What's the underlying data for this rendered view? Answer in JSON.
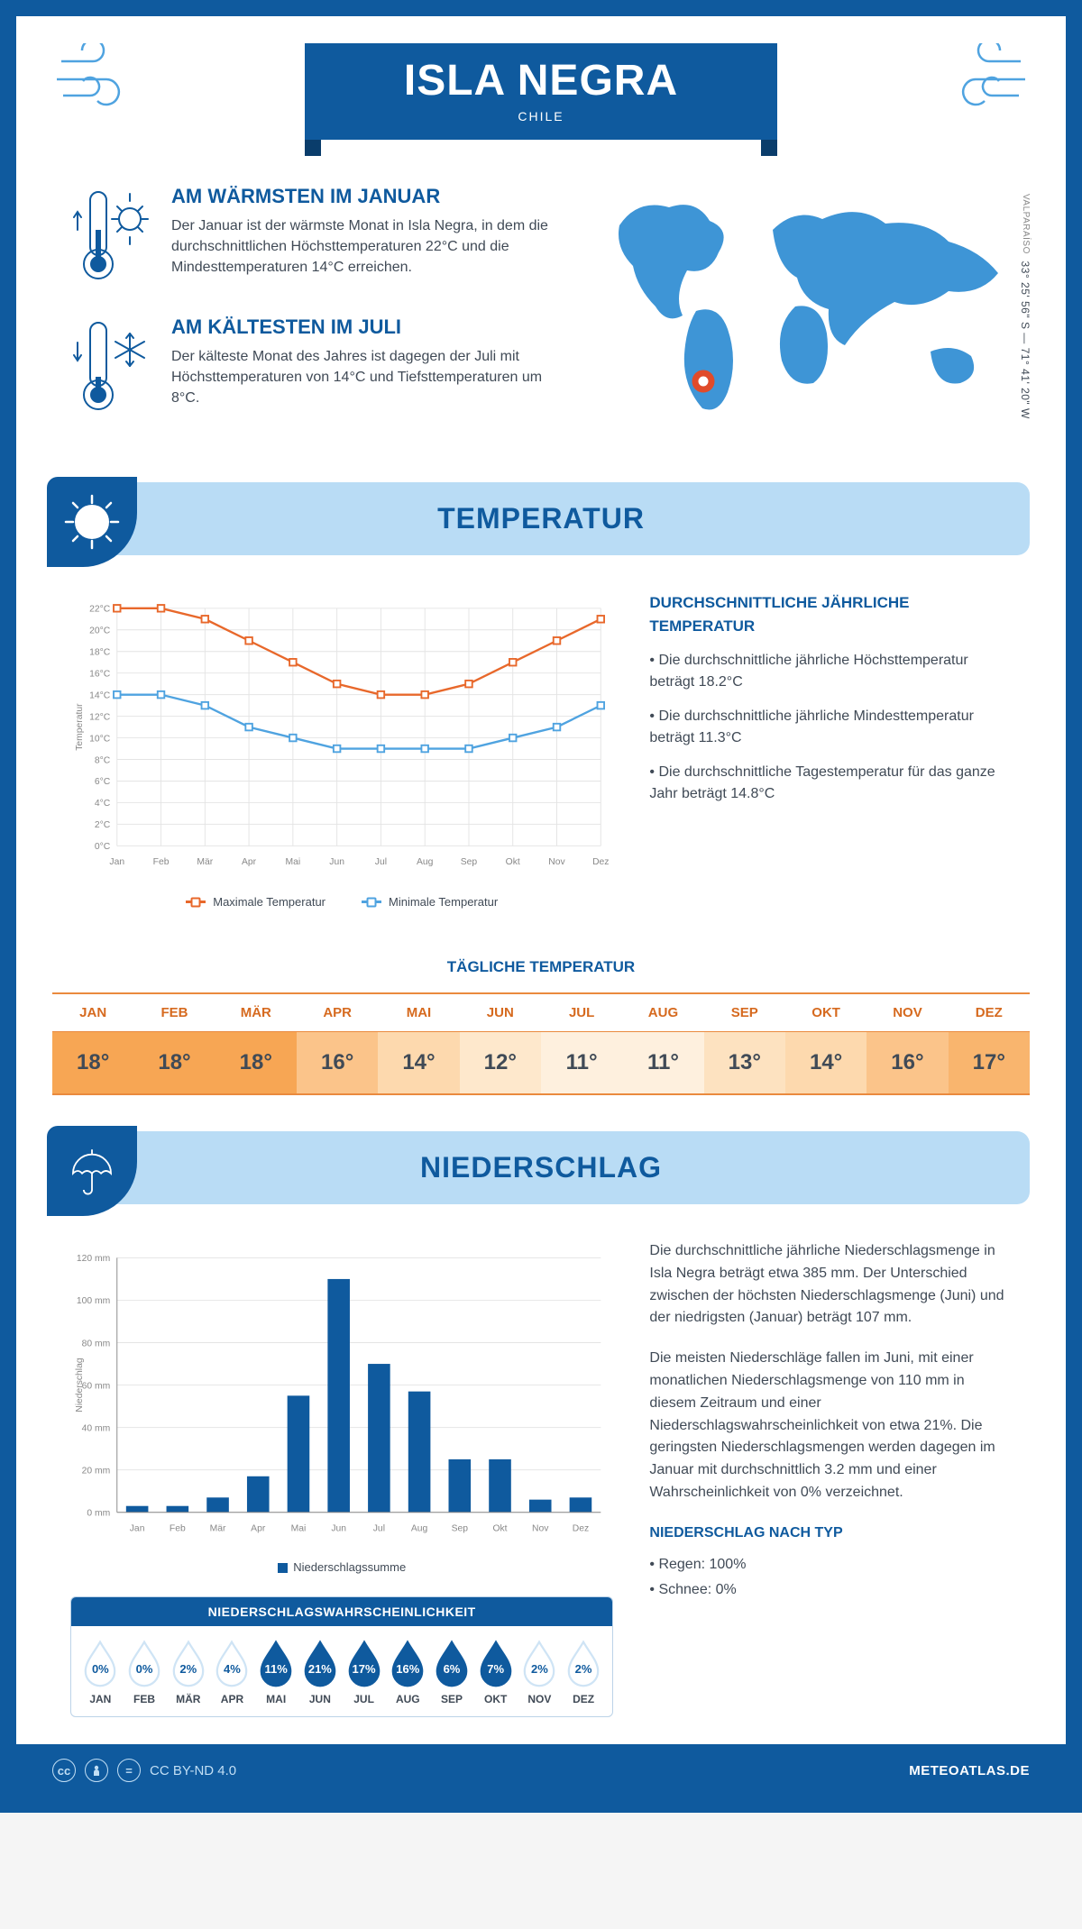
{
  "colors": {
    "brand": "#0f5a9e",
    "brand_dark": "#0a3d6b",
    "accent_blue": "#4fa3e0",
    "banner_bg": "#b9dcf5",
    "text": "#404a56",
    "orange": "#e8682b",
    "orange_border": "#ea8a3e",
    "orange_head": "#d66a1f",
    "grid": "#e4e4e4"
  },
  "header": {
    "title": "ISLA NEGRA",
    "subtitle": "CHILE",
    "coords": "33° 25' 56\" S — 71° 41' 20\" W",
    "region": "VALPARAÍSO"
  },
  "facts": {
    "warm": {
      "title": "AM WÄRMSTEN IM JANUAR",
      "text": "Der Januar ist der wärmste Monat in Isla Negra, in dem die durchschnittlichen Höchsttemperaturen 22°C und die Mindesttemperaturen 14°C erreichen."
    },
    "cold": {
      "title": "AM KÄLTESTEN IM JULI",
      "text": "Der kälteste Monat des Jahres ist dagegen der Juli mit Höchsttemperaturen von 14°C und Tiefsttemperaturen um 8°C."
    }
  },
  "temperature": {
    "title": "TEMPERATUR",
    "side_title": "DURCHSCHNITTLICHE JÄHRLICHE TEMPERATUR",
    "bullets": [
      "• Die durchschnittliche jährliche Höchsttemperatur beträgt 18.2°C",
      "• Die durchschnittliche jährliche Mindesttemperatur beträgt 11.3°C",
      "• Die durchschnittliche Tagestemperatur für das ganze Jahr beträgt 14.8°C"
    ],
    "chart": {
      "type": "line",
      "months": [
        "Jan",
        "Feb",
        "Mär",
        "Apr",
        "Mai",
        "Jun",
        "Jul",
        "Aug",
        "Sep",
        "Okt",
        "Nov",
        "Dez"
      ],
      "max_series": [
        22,
        22,
        21,
        19,
        17,
        15,
        14,
        14,
        15,
        17,
        19,
        21
      ],
      "min_series": [
        14,
        14,
        13,
        11,
        10,
        9,
        9,
        9,
        9,
        10,
        11,
        13
      ],
      "ylim": [
        0,
        22
      ],
      "ytick_step": 2,
      "max_color": "#e8682b",
      "min_color": "#4fa3e0",
      "grid_color": "#e4e4e4",
      "ylabel": "Temperatur",
      "legend_max": "Maximale Temperatur",
      "legend_min": "Minimale Temperatur"
    },
    "daily": {
      "title": "TÄGLICHE TEMPERATUR",
      "months": [
        "JAN",
        "FEB",
        "MÄR",
        "APR",
        "MAI",
        "JUN",
        "JUL",
        "AUG",
        "SEP",
        "OKT",
        "NOV",
        "DEZ"
      ],
      "values": [
        "18°",
        "18°",
        "18°",
        "16°",
        "14°",
        "12°",
        "11°",
        "11°",
        "13°",
        "14°",
        "16°",
        "17°"
      ],
      "bg_scale": [
        "#f7a654",
        "#f7a654",
        "#f7a654",
        "#fbc48a",
        "#fdd9ae",
        "#fee8cc",
        "#fef0de",
        "#fef0de",
        "#fde2c0",
        "#fdd9ae",
        "#fbc48a",
        "#f9b56e"
      ]
    }
  },
  "precipitation": {
    "title": "NIEDERSCHLAG",
    "chart": {
      "type": "bar",
      "months": [
        "Jan",
        "Feb",
        "Mär",
        "Apr",
        "Mai",
        "Jun",
        "Jul",
        "Aug",
        "Sep",
        "Okt",
        "Nov",
        "Dez"
      ],
      "values": [
        3,
        3,
        7,
        17,
        55,
        110,
        70,
        57,
        25,
        25,
        6,
        7
      ],
      "ylim": [
        0,
        120
      ],
      "ytick_step": 20,
      "bar_color": "#0f5a9e",
      "grid_color": "#e4e4e4",
      "ylabel": "Niederschlag",
      "legend": "Niederschlagssumme"
    },
    "text1": "Die durchschnittliche jährliche Niederschlagsmenge in Isla Negra beträgt etwa 385 mm. Der Unterschied zwischen der höchsten Niederschlagsmenge (Juni) und der niedrigsten (Januar) beträgt 107 mm.",
    "text2": "Die meisten Niederschläge fallen im Juni, mit einer monatlichen Niederschlagsmenge von 110 mm in diesem Zeitraum und einer Niederschlagswahrscheinlichkeit von etwa 21%. Die geringsten Niederschlagsmengen werden dagegen im Januar mit durchschnittlich 3.2 mm und einer Wahrscheinlichkeit von 0% verzeichnet.",
    "type_title": "NIEDERSCHLAG NACH TYP",
    "type_bullets": [
      "• Regen: 100%",
      "• Schnee: 0%"
    ],
    "probability": {
      "title": "NIEDERSCHLAGSWAHRSCHEINLICHKEIT",
      "months": [
        "JAN",
        "FEB",
        "MÄR",
        "APR",
        "MAI",
        "JUN",
        "JUL",
        "AUG",
        "SEP",
        "OKT",
        "NOV",
        "DEZ"
      ],
      "pct": [
        0,
        0,
        2,
        4,
        11,
        21,
        17,
        16,
        6,
        7,
        2,
        2
      ],
      "fill_threshold": 5,
      "fill_color": "#0f5a9e",
      "empty_color": "#cfe4f5"
    }
  },
  "footer": {
    "license": "CC BY-ND 4.0",
    "brand": "METEOATLAS.DE"
  }
}
